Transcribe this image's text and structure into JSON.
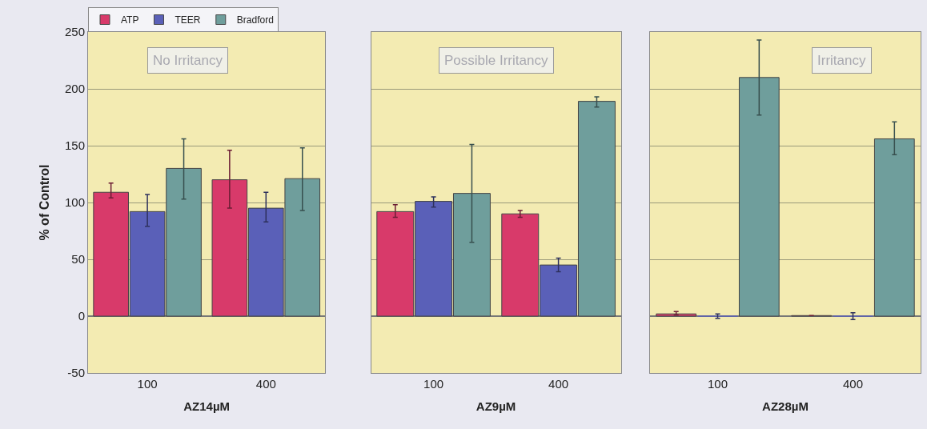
{
  "chart_data": [
    {
      "type": "bar",
      "categories": [
        "100",
        "400"
      ],
      "xlabel": "AZ14µM",
      "ylabel": "% of Control",
      "annotations": [
        "No Irritancy"
      ],
      "ylim": [
        -50,
        250
      ],
      "yticks": [
        -50,
        0,
        50,
        100,
        150,
        200,
        250
      ],
      "grid": "y",
      "legend": "top left",
      "series": [
        {
          "name": "ATP",
          "color": "#d83a6a",
          "values": [
            109,
            120
          ],
          "errors": [
            [
              104,
              117
            ],
            [
              95,
              146
            ]
          ]
        },
        {
          "name": "TEER",
          "color": "#5a60b8",
          "values": [
            92,
            95
          ],
          "errors": [
            [
              79,
              107
            ],
            [
              83,
              109
            ]
          ]
        },
        {
          "name": "Bradford",
          "color": "#6f9e9c",
          "values": [
            130,
            121
          ],
          "errors": [
            [
              103,
              156
            ],
            [
              93,
              148
            ]
          ]
        }
      ]
    },
    {
      "type": "bar",
      "categories": [
        "100",
        "400"
      ],
      "xlabel": "AZ9µM",
      "annotations": [
        "Possible Irritancy"
      ],
      "ylim": [
        -50,
        250
      ],
      "yticks": [
        -50,
        0,
        50,
        100,
        150,
        200,
        250
      ],
      "grid": "y",
      "tick_labels": "x",
      "series": [
        {
          "color": "#d83a6a",
          "values": [
            92,
            90
          ],
          "errors": [
            [
              87,
              98
            ],
            [
              87,
              93
            ]
          ]
        },
        {
          "color": "#5a60b8",
          "values": [
            101,
            45
          ],
          "errors": [
            [
              96,
              105
            ],
            [
              39,
              51
            ]
          ]
        },
        {
          "color": "#6f9e9c",
          "values": [
            108,
            189
          ],
          "errors": [
            [
              65,
              151
            ],
            [
              184,
              193
            ]
          ]
        }
      ]
    },
    {
      "type": "bar",
      "categories": [
        "100",
        "400"
      ],
      "xlabel": "AZ28µM",
      "annotations": [
        "Irritancy"
      ],
      "ylim": [
        -50,
        250
      ],
      "yticks": [
        -50,
        0,
        50,
        100,
        150,
        200,
        250
      ],
      "grid": "y",
      "tick_labels": "x",
      "series": [
        {
          "color": "#d83a6a",
          "values": [
            2,
            0.5
          ],
          "errors": [
            [
              1,
              4
            ],
            null
          ]
        },
        {
          "color": "#5a60b8",
          "values": [
            0,
            0
          ],
          "errors": [
            [
              -2,
              2
            ],
            [
              -3,
              3
            ]
          ]
        },
        {
          "color": "#6f9e9c",
          "values": [
            210,
            156
          ],
          "errors": [
            [
              177,
              243
            ],
            [
              142,
              171
            ]
          ]
        }
      ]
    }
  ]
}
